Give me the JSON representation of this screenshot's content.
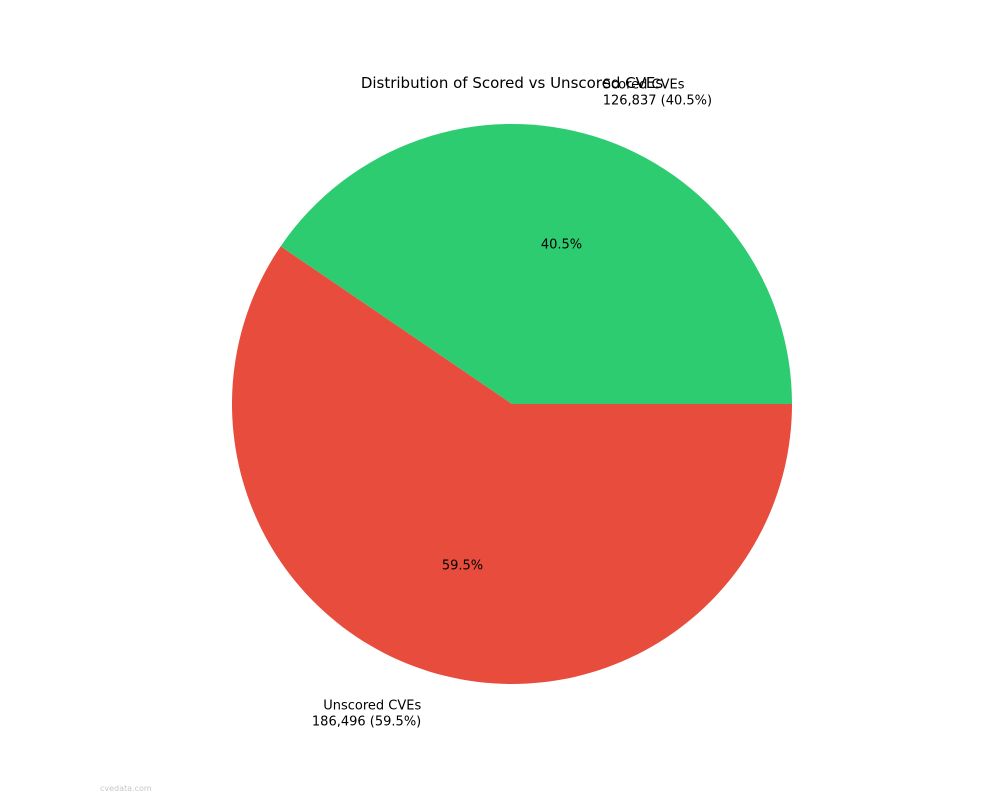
{
  "chart_data": {
    "type": "pie",
    "title": "Distribution of Scored vs Unscored CVEs",
    "slices": [
      {
        "name": "Scored CVEs",
        "value": 126837,
        "value_label": "126,837 (40.5%)",
        "percent": 40.5,
        "percent_label": "40.5%",
        "color": "#2ecc71"
      },
      {
        "name": "Unscored CVEs",
        "value": 186496,
        "value_label": "186,496 (59.5%)",
        "percent": 59.5,
        "percent_label": "59.5%",
        "color": "#e74c3c"
      }
    ],
    "start_angle_deg": 0,
    "direction": "counterclockwise"
  },
  "watermark": "cvedata.com"
}
